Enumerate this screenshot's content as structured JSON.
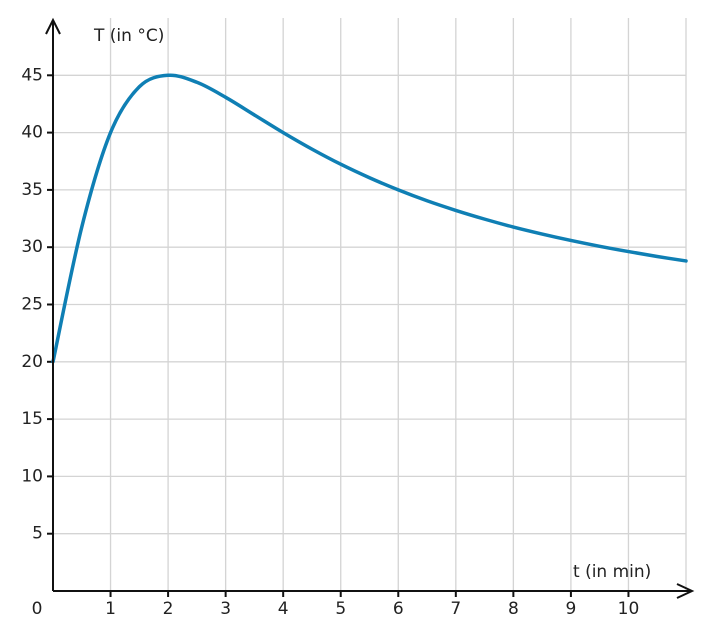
{
  "chart_data": {
    "type": "line",
    "x_label": "t (in min)",
    "y_label": "T (in °C)",
    "x": [
      0,
      0.5,
      1,
      1.5,
      2,
      2.5,
      3,
      3.5,
      4,
      4.5,
      5,
      5.5,
      6,
      6.5,
      7,
      7.5,
      8,
      8.5,
      9,
      9.5,
      10,
      10.5,
      11
    ],
    "series": [
      {
        "color": "#0f7fb4",
        "values": [
          20,
          31.76,
          40,
          44,
          45,
          44.39,
          43.08,
          41.54,
          40,
          38.56,
          37.24,
          36.06,
          35,
          34.05,
          33.21,
          32.45,
          31.76,
          31.15,
          30.59,
          30.08,
          29.62,
          29.19,
          28.8
        ]
      }
    ],
    "xlim": [
      0,
      11
    ],
    "ylim": [
      0,
      50
    ],
    "xticks": [
      0,
      1,
      2,
      3,
      4,
      5,
      6,
      7,
      8,
      9,
      10
    ],
    "yticks": [
      5,
      10,
      15,
      20,
      25,
      30,
      35,
      40,
      45
    ],
    "grid": true
  }
}
